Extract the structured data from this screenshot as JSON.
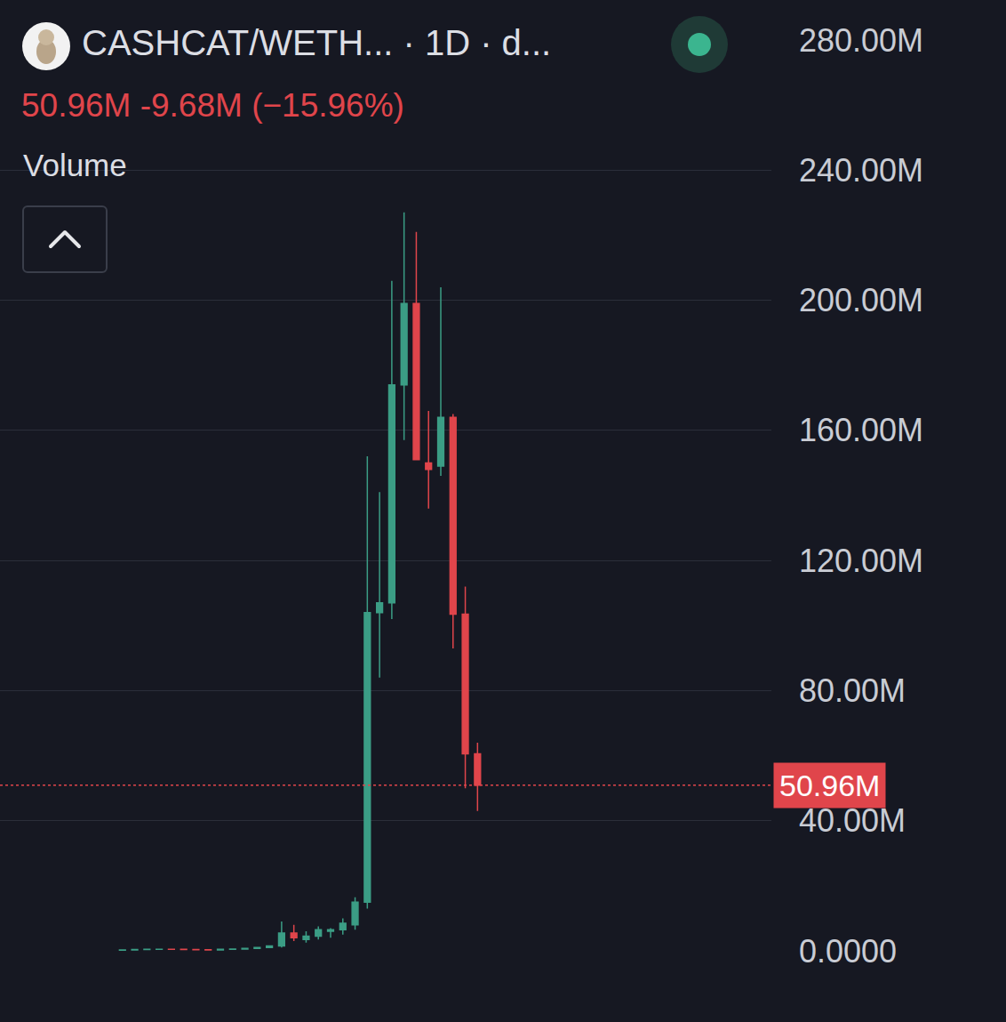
{
  "chart_data": {
    "type": "candlestick",
    "title": "CASHCAT/WETH...  · 1D · d...",
    "indicator": "Volume",
    "header": {
      "price": "50.96M",
      "change": "-9.68M",
      "change_pct": "(−15.96%)"
    },
    "categories": [
      null,
      null,
      null,
      null,
      null,
      null,
      null,
      null,
      null,
      null,
      null,
      null,
      null,
      null,
      null,
      null,
      null,
      null,
      null,
      null,
      null,
      null,
      null,
      null,
      null,
      null,
      null,
      null,
      null,
      null
    ],
    "open": [
      0.2,
      0.3,
      0.4,
      0.45,
      0.5,
      0.45,
      0.4,
      0.35,
      0.3,
      0.45,
      0.55,
      0.75,
      1.0,
      1.5,
      5.5,
      3.5,
      4.5,
      6,
      6.5,
      8,
      15,
      104,
      107,
      174,
      199,
      150,
      149,
      164,
      103.5,
      60.6
    ],
    "high": [
      0.3,
      0.4,
      0.5,
      0.55,
      0.55,
      0.5,
      0.45,
      0.4,
      0.5,
      0.6,
      0.8,
      1.1,
      1.6,
      9,
      8,
      6,
      7.5,
      7,
      10,
      16.5,
      152,
      141,
      206,
      227,
      221,
      166,
      204,
      165,
      112,
      64
    ],
    "low": [
      0.2,
      0.3,
      0.35,
      0.4,
      0.4,
      0.35,
      0.3,
      0.3,
      0.3,
      0.4,
      0.5,
      0.7,
      0.9,
      1,
      3,
      2.5,
      3.5,
      4,
      5,
      6.5,
      13,
      84,
      102,
      157,
      151,
      136,
      146,
      93,
      50,
      43
    ],
    "close": [
      0.3,
      0.4,
      0.45,
      0.5,
      0.45,
      0.4,
      0.35,
      0.3,
      0.45,
      0.55,
      0.75,
      1.0,
      1.5,
      5.5,
      4,
      4.5,
      6.5,
      6.5,
      8.5,
      15,
      104,
      107,
      174,
      199,
      151,
      148,
      164,
      103.5,
      60.6,
      50.96
    ],
    "color": {
      "increasing": "#3b9d85",
      "decreasing": "#e0454b"
    },
    "last_value": {
      "value": 50.96,
      "label": "50.96M"
    },
    "xlim": [
      -10,
      53
    ],
    "ylim": [
      0,
      280
    ],
    "yticks": [
      {
        "value": 0,
        "label": "0.0000"
      },
      {
        "value": 40,
        "label": "40.00M"
      },
      {
        "value": 80,
        "label": "80.00M"
      },
      {
        "value": 120,
        "label": "120.00M"
      },
      {
        "value": 160,
        "label": "160.00M"
      },
      {
        "value": 200,
        "label": "200.00M"
      },
      {
        "value": 240,
        "label": "240.00M"
      },
      {
        "value": 280,
        "label": "280.00M"
      }
    ],
    "grid": true,
    "tick_labels": "y"
  }
}
